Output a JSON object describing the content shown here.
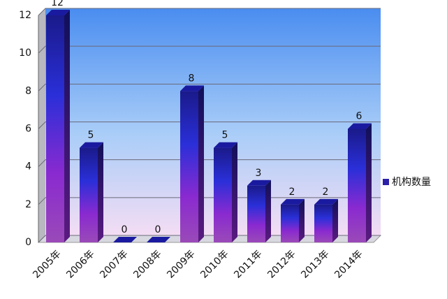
{
  "chart_data": {
    "type": "bar",
    "categories": [
      "2005年",
      "2006年",
      "2007年",
      "2008年",
      "2009年",
      "2010年",
      "2011年",
      "2012年",
      "2013年",
      "2014年"
    ],
    "series": [
      {
        "name": "机构数量",
        "color": "#2a1fa8",
        "values": [
          12,
          5,
          0,
          0,
          8,
          5,
          3,
          2,
          2,
          6
        ]
      }
    ],
    "ylim": [
      0,
      12
    ],
    "yticks": [
      0,
      2,
      4,
      6,
      8,
      10,
      12
    ],
    "grid": true,
    "legend": "right"
  }
}
